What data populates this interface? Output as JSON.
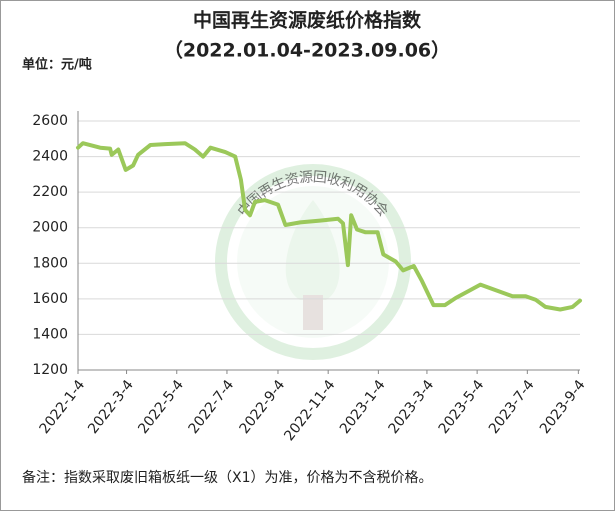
{
  "chart_data": {
    "type": "line",
    "title": "中国再生资源废纸价格指数",
    "subtitle": "（2022.01.04-2023.09.06）",
    "y_unit": "单位：元/吨",
    "note": "备注：指数采取废旧箱板纸一级（X1）为准，价格为不含税价格。",
    "watermark": "中国再生资源回收利用协会",
    "x": [
      "2022-1-4",
      "2022-1-10",
      "2022-1-31",
      "2022-2-12",
      "2022-2-14",
      "2022-2-22",
      "2022-3-3",
      "2022-3-12",
      "2022-3-18",
      "2022-4-2",
      "2022-4-20",
      "2022-5-14",
      "2022-5-26",
      "2022-6-5",
      "2022-6-14",
      "2022-7-2",
      "2022-7-14",
      "2022-7-21",
      "2022-7-26",
      "2022-8-1",
      "2022-8-7",
      "2022-8-19",
      "2022-9-4",
      "2022-9-13",
      "2022-10-1",
      "2022-10-25",
      "2022-11-16",
      "2022-11-22",
      "2022-11-28",
      "2022-12-2",
      "2022-12-9",
      "2022-12-19",
      "2023-1-3",
      "2023-1-10",
      "2023-1-25",
      "2023-2-3",
      "2023-2-16",
      "2023-2-26",
      "2023-3-12",
      "2023-3-26",
      "2023-4-8",
      "2023-4-26",
      "2023-5-8",
      "2023-5-26",
      "2023-6-16",
      "2023-7-2",
      "2023-7-14",
      "2023-7-26",
      "2023-8-13",
      "2023-8-28",
      "2023-9-6"
    ],
    "series": [
      {
        "name": "废纸价格指数",
        "color": "#9bc85a",
        "values": [
          2450,
          2475,
          2450,
          2445,
          2410,
          2440,
          2325,
          2350,
          2410,
          2465,
          2470,
          2475,
          2440,
          2400,
          2450,
          2425,
          2400,
          2270,
          2100,
          2070,
          2145,
          2155,
          2130,
          2015,
          2030,
          2040,
          2050,
          2025,
          1790,
          2070,
          1990,
          1975,
          1975,
          1850,
          1810,
          1760,
          1785,
          1700,
          1565,
          1565,
          1605,
          1650,
          1680,
          1650,
          1615,
          1615,
          1595,
          1555,
          1540,
          1555,
          1590
        ]
      }
    ],
    "xlim": [
      "2022-1-4",
      "2023-9-6"
    ],
    "xticks": [
      "2022-1-4",
      "2022-3-4",
      "2022-5-4",
      "2022-7-4",
      "2022-9-4",
      "2022-11-4",
      "2023-1-4",
      "2023-3-4",
      "2023-5-4",
      "2023-7-4",
      "2023-9-4"
    ],
    "ylim": [
      1200,
      2600
    ],
    "yticks": [
      1200,
      1400,
      1600,
      1800,
      2000,
      2200,
      2400,
      2600
    ],
    "grid": true
  }
}
